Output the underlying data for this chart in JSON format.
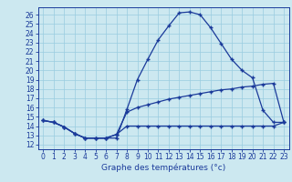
{
  "xlabel": "Graphe des températures (°c)",
  "bg_color": "#cce8f0",
  "grid_color": "#99cce0",
  "line_color": "#1a3a9a",
  "xlim": [
    -0.5,
    23.5
  ],
  "ylim": [
    11.5,
    26.8
  ],
  "xticks": [
    0,
    1,
    2,
    3,
    4,
    5,
    6,
    7,
    8,
    9,
    10,
    11,
    12,
    13,
    14,
    15,
    16,
    17,
    18,
    19,
    20,
    21,
    22,
    23
  ],
  "yticks": [
    12,
    13,
    14,
    15,
    16,
    17,
    18,
    19,
    20,
    21,
    22,
    23,
    24,
    25,
    26
  ],
  "series1_x": [
    0,
    1,
    2,
    3,
    4,
    5,
    6,
    7,
    8,
    9,
    10,
    11,
    12,
    13,
    14,
    15,
    16,
    17,
    18,
    19,
    20,
    21,
    22,
    23
  ],
  "series1_y": [
    14.6,
    14.4,
    13.9,
    13.2,
    12.7,
    12.7,
    12.7,
    12.7,
    15.8,
    19.0,
    21.2,
    23.3,
    24.8,
    26.2,
    26.3,
    26.0,
    24.6,
    22.9,
    21.2,
    20.0,
    19.2,
    15.7,
    14.4,
    14.4
  ],
  "series2_x": [
    0,
    1,
    2,
    3,
    4,
    5,
    6,
    7,
    8,
    9,
    10,
    11,
    12,
    13,
    14,
    15,
    16,
    17,
    18,
    19,
    20,
    21,
    22,
    23
  ],
  "series2_y": [
    14.6,
    14.4,
    13.9,
    13.2,
    12.7,
    12.7,
    12.7,
    13.1,
    15.5,
    16.0,
    16.3,
    16.6,
    16.9,
    17.1,
    17.3,
    17.5,
    17.7,
    17.9,
    18.0,
    18.2,
    18.3,
    18.5,
    18.6,
    14.4
  ],
  "series3_x": [
    0,
    1,
    2,
    3,
    4,
    5,
    6,
    7,
    8,
    9,
    10,
    11,
    12,
    13,
    14,
    15,
    16,
    17,
    18,
    19,
    20,
    21,
    22,
    23
  ],
  "series3_y": [
    14.6,
    14.4,
    13.9,
    13.2,
    12.7,
    12.7,
    12.7,
    13.1,
    14.0,
    14.0,
    14.0,
    14.0,
    14.0,
    14.0,
    14.0,
    14.0,
    14.0,
    14.0,
    14.0,
    14.0,
    14.0,
    14.0,
    14.0,
    14.4
  ],
  "xlabel_fontsize": 6.5,
  "tick_fontsize": 5.5,
  "marker_size": 3.5,
  "line_width": 0.9
}
